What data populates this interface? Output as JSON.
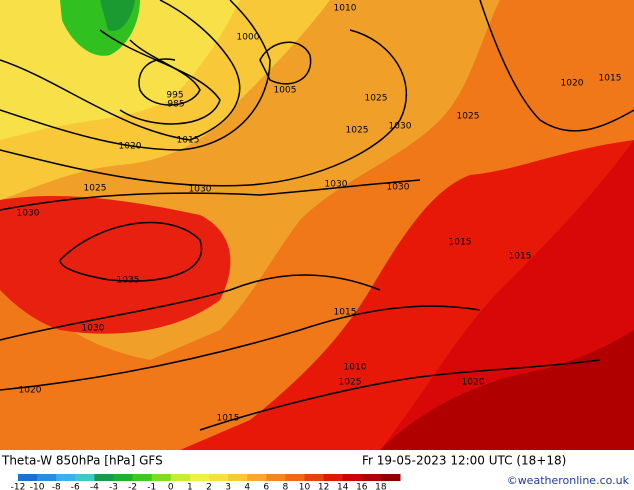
{
  "title": "Theta-W 850hPa [hPa] GFS",
  "datetime": "Fr 19-05-2023 12:00 UTC (18+18)",
  "credit": "©weatheronline.co.uk",
  "colorbar": {
    "labels": [
      "-12",
      "-10",
      "-8",
      "-6",
      "-4",
      "-3",
      "-2",
      "-1",
      "0",
      "1",
      "2",
      "3",
      "4",
      "6",
      "8",
      "10",
      "12",
      "14",
      "16",
      "18"
    ],
    "colors": [
      "#1e6fd0",
      "#2a8ee0",
      "#3cb0e8",
      "#40c8c8",
      "#1a9a4a",
      "#20b030",
      "#40c820",
      "#80dc20",
      "#c8ec30",
      "#f0f040",
      "#f8e040",
      "#f8c838",
      "#f8a830",
      "#f08820",
      "#f06818",
      "#e84010",
      "#e01808",
      "#d00000",
      "#b00000",
      "#900000"
    ]
  },
  "isobar_labels": [
    "1010",
    "1000",
    "1005",
    "995",
    "985",
    "1025",
    "1025",
    "1030",
    "1025",
    "1020",
    "1015",
    "1020",
    "1015",
    "1030",
    "1030",
    "1030",
    "1030",
    "1025",
    "1035",
    "1030",
    "1020",
    "1015",
    "1015",
    "1015",
    "1010",
    "1025",
    "1020",
    "1015"
  ]
}
